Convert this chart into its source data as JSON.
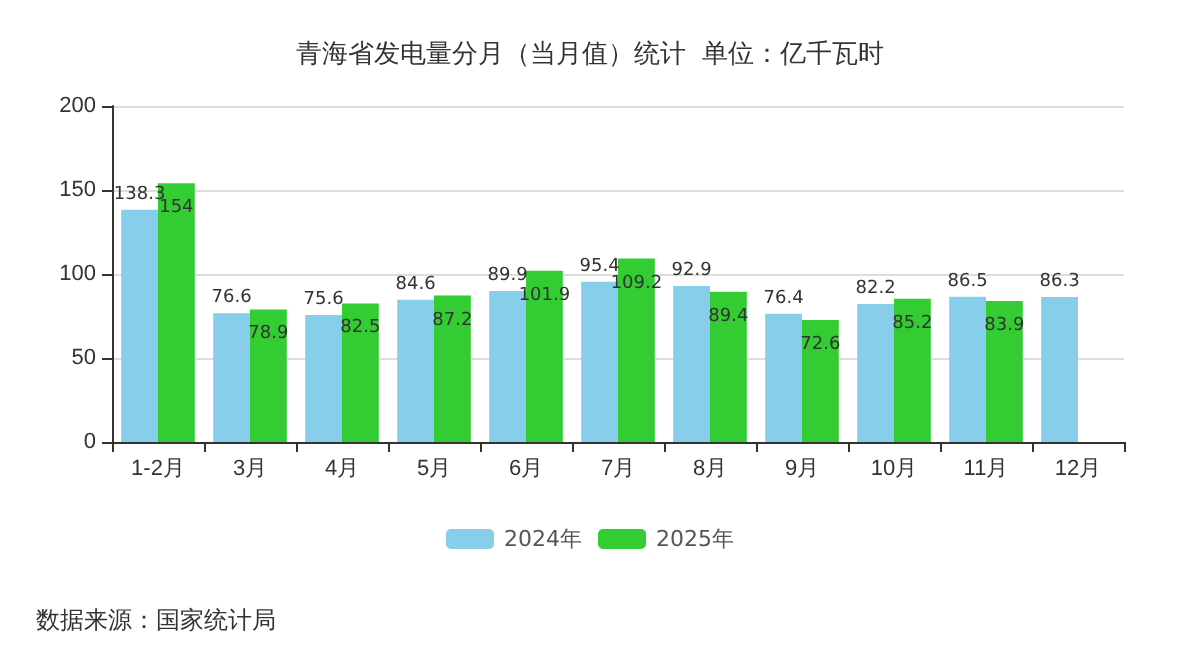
{
  "chart_data": {
    "type": "bar",
    "title": "青海省发电量分月（当月值）统计  单位：亿千瓦时",
    "categories": [
      "1-2月",
      "3月",
      "4月",
      "5月",
      "6月",
      "7月",
      "8月",
      "9月",
      "10月",
      "11月",
      "12月"
    ],
    "series": [
      {
        "name": "2024年",
        "color": "#87ceeb",
        "values": [
          138.3,
          76.6,
          75.6,
          84.6,
          89.9,
          95.4,
          92.9,
          76.4,
          82.2,
          86.5,
          86.3
        ]
      },
      {
        "name": "2025年",
        "color": "#33cc33",
        "values": [
          154,
          78.9,
          82.5,
          87.2,
          101.9,
          109.2,
          89.4,
          72.6,
          85.2,
          83.9,
          null
        ]
      }
    ],
    "ylim": [
      0,
      200
    ],
    "yticks": [
      0,
      50,
      100,
      150,
      200
    ],
    "grid": "y",
    "legend": "bottom",
    "data_labels": true,
    "annotations": [
      "数据来源：国家统计局"
    ]
  }
}
